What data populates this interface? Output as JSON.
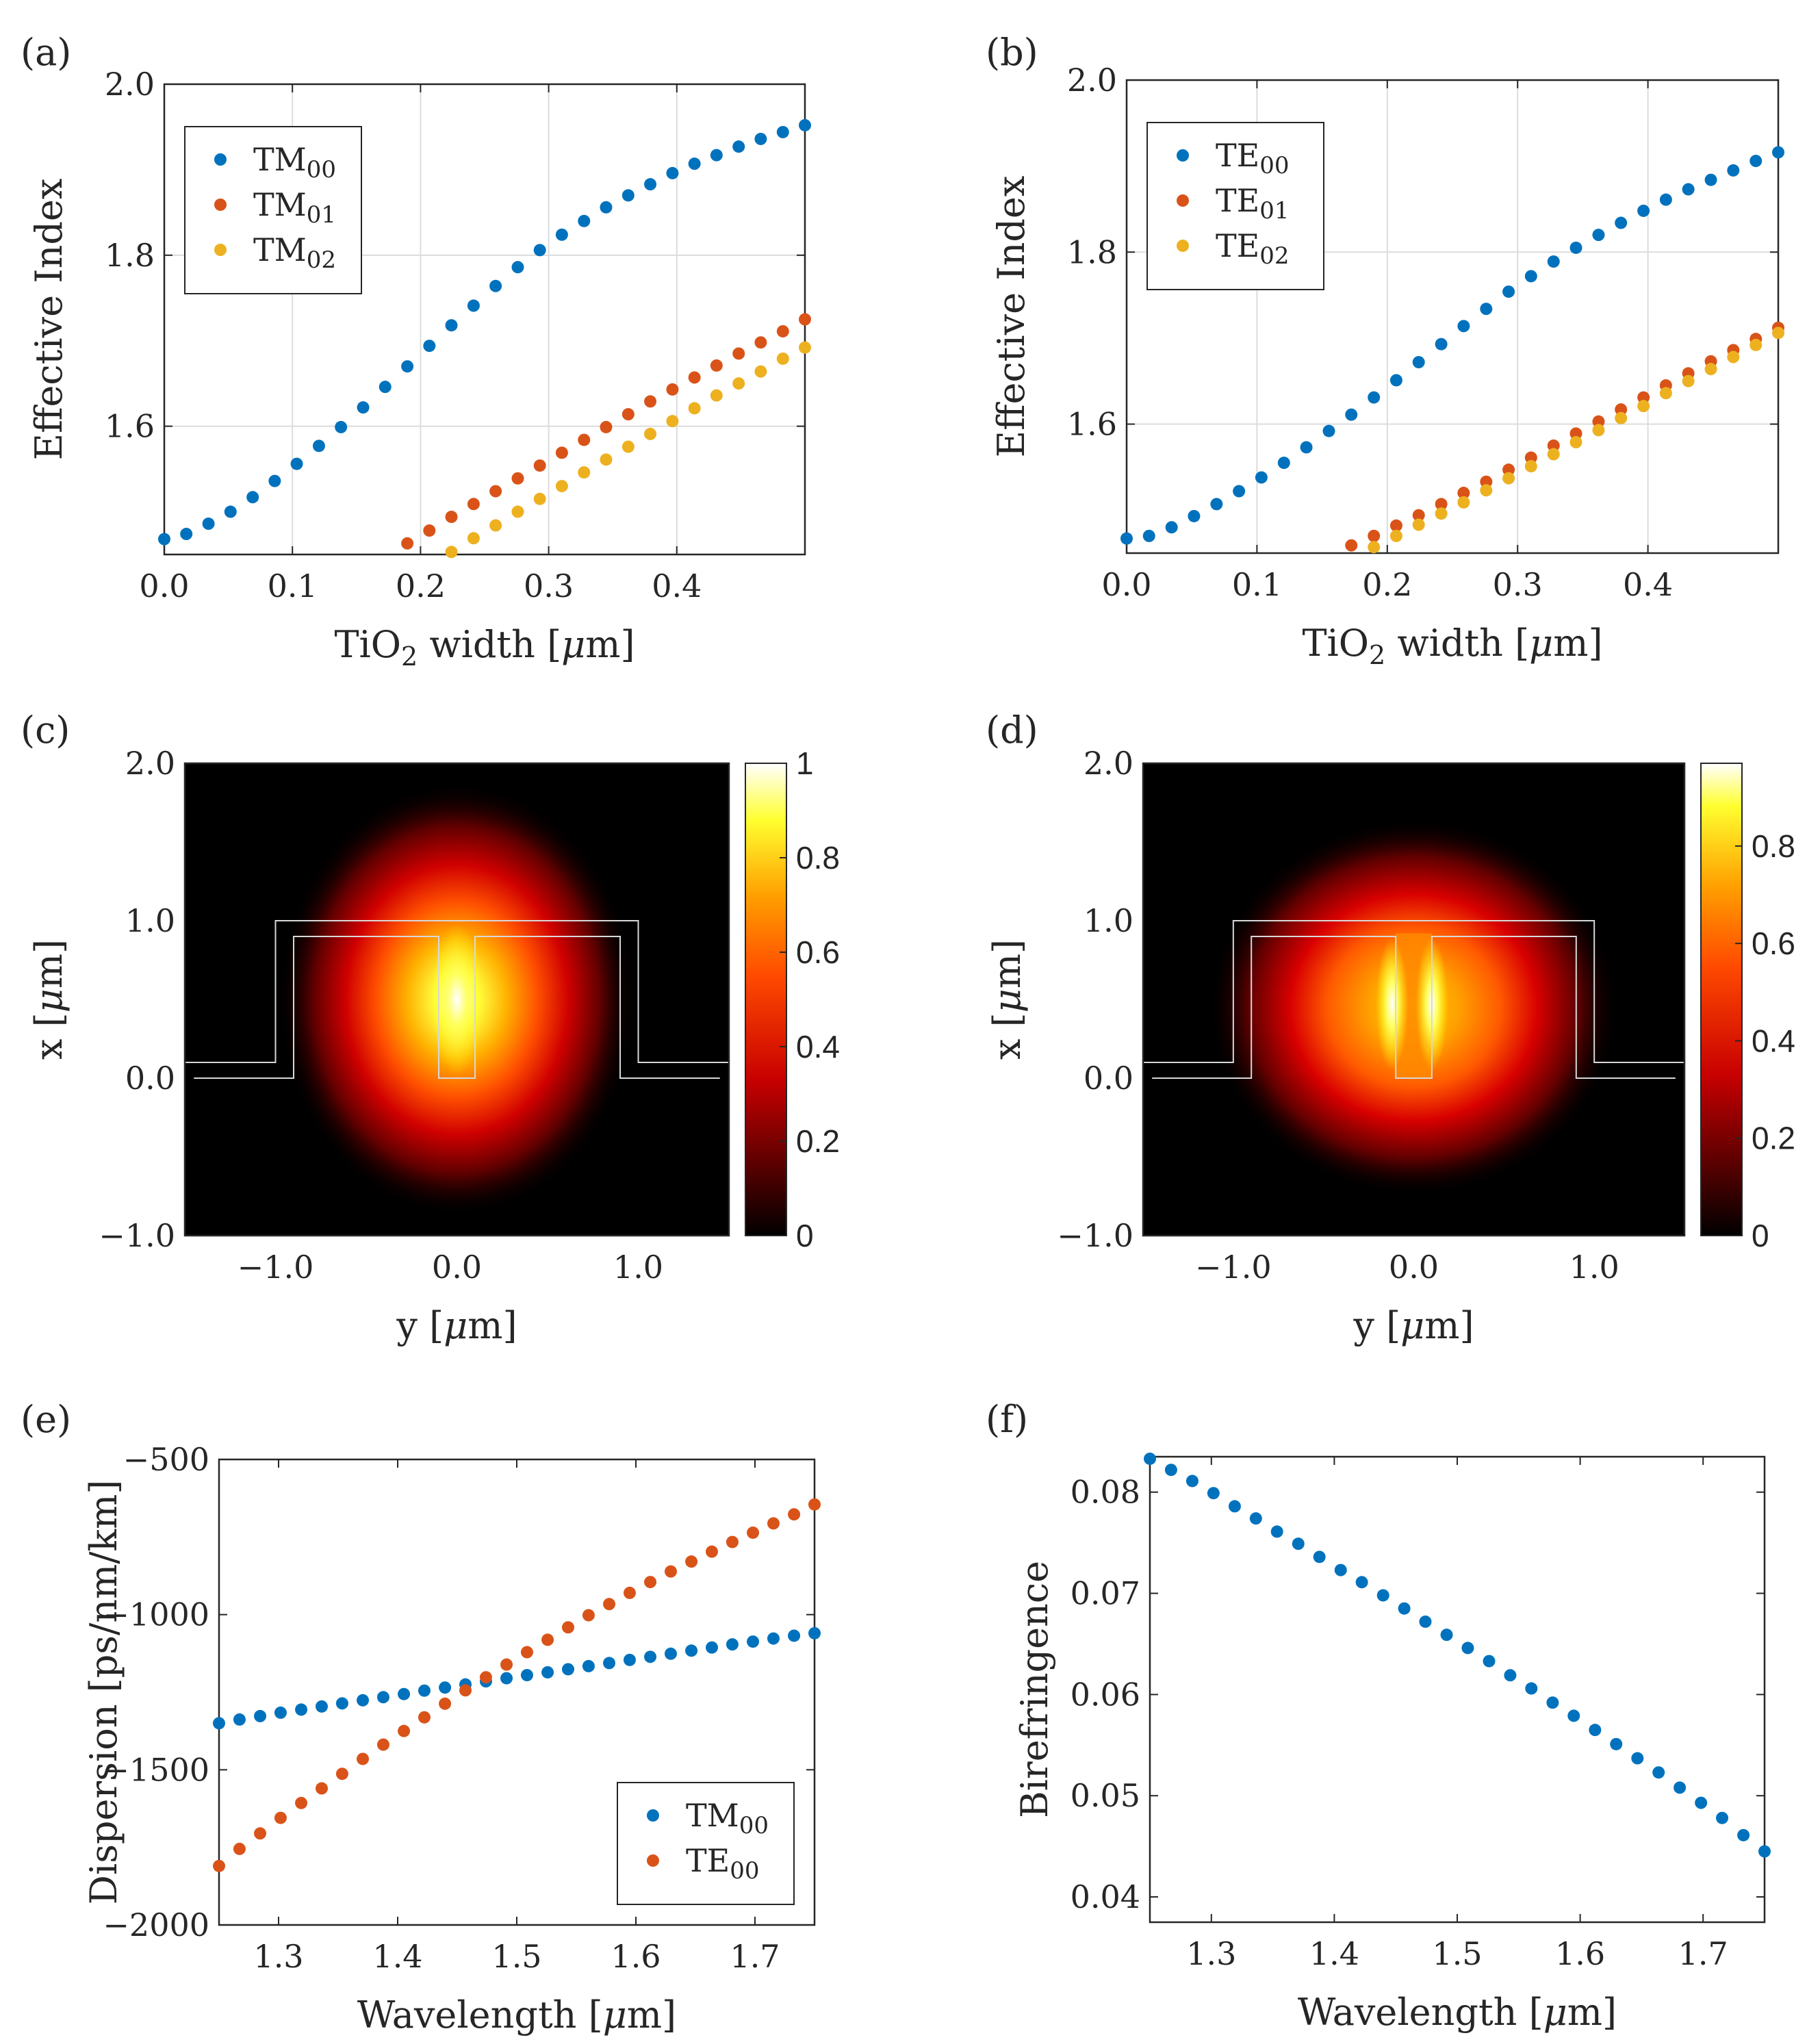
{
  "chart_data": [
    {
      "panel": "(a)",
      "type": "scatter",
      "xlabel": "TiO2 width [μm]",
      "ylabel": "Effective Index",
      "xlim": [
        0.0,
        0.5
      ],
      "ylim": [
        1.45,
        2.0
      ],
      "xticks": [
        "0.0",
        "0.1",
        "0.2",
        "0.3",
        "0.4"
      ],
      "yticks": [
        "1.6",
        "1.8",
        "2.0"
      ],
      "grid": true,
      "legend_position": "top-left",
      "series": [
        {
          "name": "TM",
          "sub": "00",
          "color": "#0072BD",
          "x": [
            0.0,
            0.0172,
            0.0345,
            0.0517,
            0.069,
            0.0862,
            0.1034,
            0.1207,
            0.1379,
            0.1552,
            0.1724,
            0.1897,
            0.2069,
            0.2241,
            0.2414,
            0.2586,
            0.2759,
            0.2931,
            0.3103,
            0.3276,
            0.3448,
            0.3621,
            0.3793,
            0.3966,
            0.4138,
            0.431,
            0.4483,
            0.4655,
            0.4828,
            0.5
          ],
          "y": [
            1.468,
            1.474,
            1.486,
            1.5,
            1.517,
            1.536,
            1.556,
            1.577,
            1.599,
            1.622,
            1.646,
            1.67,
            1.694,
            1.718,
            1.741,
            1.764,
            1.786,
            1.806,
            1.824,
            1.84,
            1.856,
            1.87,
            1.883,
            1.896,
            1.907,
            1.917,
            1.927,
            1.936,
            1.944,
            1.952
          ]
        },
        {
          "name": "TM",
          "sub": "01",
          "color": "#D95319",
          "x": [
            0.1897,
            0.2069,
            0.2241,
            0.2414,
            0.2586,
            0.2759,
            0.2931,
            0.3103,
            0.3276,
            0.3448,
            0.3621,
            0.3793,
            0.3966,
            0.4138,
            0.431,
            0.4483,
            0.4655,
            0.4828,
            0.5
          ],
          "y": [
            1.463,
            1.478,
            1.494,
            1.509,
            1.524,
            1.539,
            1.554,
            1.569,
            1.584,
            1.599,
            1.614,
            1.629,
            1.643,
            1.657,
            1.671,
            1.685,
            1.698,
            1.711,
            1.725
          ]
        },
        {
          "name": "TM",
          "sub": "02",
          "color": "#EDB120",
          "x": [
            0.2241,
            0.2414,
            0.2586,
            0.2759,
            0.2931,
            0.3103,
            0.3276,
            0.3448,
            0.3621,
            0.3793,
            0.3966,
            0.4138,
            0.431,
            0.4483,
            0.4655,
            0.4828,
            0.5
          ],
          "y": [
            1.453,
            1.469,
            1.484,
            1.5,
            1.515,
            1.53,
            1.546,
            1.561,
            1.576,
            1.591,
            1.606,
            1.621,
            1.636,
            1.65,
            1.664,
            1.679,
            1.692
          ]
        }
      ]
    },
    {
      "panel": "(b)",
      "type": "scatter",
      "xlabel": "TiO2 width [μm]",
      "ylabel": "Effective Index",
      "xlim": [
        0.0,
        0.5
      ],
      "ylim": [
        1.45,
        2.0
      ],
      "xticks": [
        "0.0",
        "0.1",
        "0.2",
        "0.3",
        "0.4"
      ],
      "yticks": [
        "1.6",
        "1.8",
        "2.0"
      ],
      "grid": true,
      "legend_position": "top-left",
      "series": [
        {
          "name": "TE",
          "sub": "00",
          "color": "#0072BD",
          "x": [
            0.0,
            0.0172,
            0.0345,
            0.0517,
            0.069,
            0.0862,
            0.1034,
            0.1207,
            0.1379,
            0.1552,
            0.1724,
            0.1897,
            0.2069,
            0.2241,
            0.2414,
            0.2586,
            0.2759,
            0.2931,
            0.3103,
            0.3276,
            0.3448,
            0.3621,
            0.3793,
            0.3966,
            0.4138,
            0.431,
            0.4483,
            0.4655,
            0.4828,
            0.5
          ],
          "y": [
            1.467,
            1.47,
            1.48,
            1.493,
            1.507,
            1.522,
            1.538,
            1.555,
            1.573,
            1.592,
            1.611,
            1.631,
            1.651,
            1.672,
            1.693,
            1.714,
            1.734,
            1.754,
            1.772,
            1.789,
            1.805,
            1.82,
            1.834,
            1.848,
            1.861,
            1.873,
            1.884,
            1.895,
            1.906,
            1.916
          ]
        },
        {
          "name": "TE",
          "sub": "01",
          "color": "#D95319",
          "x": [
            0.1724,
            0.1897,
            0.2069,
            0.2241,
            0.2414,
            0.2586,
            0.2759,
            0.2931,
            0.3103,
            0.3276,
            0.3448,
            0.3621,
            0.3793,
            0.3966,
            0.4138,
            0.431,
            0.4483,
            0.4655,
            0.4828,
            0.5
          ],
          "y": [
            1.459,
            1.47,
            1.482,
            1.494,
            1.507,
            1.52,
            1.533,
            1.547,
            1.561,
            1.575,
            1.589,
            1.603,
            1.617,
            1.631,
            1.645,
            1.659,
            1.673,
            1.686,
            1.699,
            1.712
          ]
        },
        {
          "name": "TE",
          "sub": "02",
          "color": "#EDB120",
          "x": [
            0.1897,
            0.2069,
            0.2241,
            0.2414,
            0.2586,
            0.2759,
            0.2931,
            0.3103,
            0.3276,
            0.3448,
            0.3621,
            0.3793,
            0.3966,
            0.4138,
            0.431,
            0.4483,
            0.4655,
            0.4828,
            0.5
          ],
          "y": [
            1.457,
            1.47,
            1.483,
            1.496,
            1.509,
            1.523,
            1.537,
            1.551,
            1.565,
            1.579,
            1.593,
            1.607,
            1.621,
            1.636,
            1.65,
            1.664,
            1.678,
            1.692,
            1.706
          ]
        }
      ]
    },
    {
      "panel": "(c)",
      "type": "heatmap",
      "xlabel": "y [μm]",
      "ylabel": "x [μm]",
      "xlim": [
        -1.5,
        1.5
      ],
      "ylim": [
        -1.0,
        2.0
      ],
      "xticks": [
        "−1.0",
        "0.0",
        "1.0"
      ],
      "yticks": [
        "−1.0",
        "0.0",
        "1.0",
        "2.0"
      ],
      "colorbar": {
        "min": 0,
        "max": 1,
        "ticks": [
          "0",
          "0.2",
          "0.4",
          "0.6",
          "0.8",
          "1"
        ]
      },
      "peak": {
        "y": 0.0,
        "x": 0.5,
        "value": 1.0
      },
      "mode": "single-lobe centered in the slot"
    },
    {
      "panel": "(d)",
      "type": "heatmap",
      "xlabel": "y [μm]",
      "ylabel": "x [μm]",
      "xlim": [
        -1.5,
        1.5
      ],
      "ylim": [
        -1.0,
        2.0
      ],
      "xticks": [
        "−1.0",
        "0.0",
        "1.0"
      ],
      "yticks": [
        "−1.0",
        "0.0",
        "1.0",
        "2.0"
      ],
      "colorbar": {
        "min": 0,
        "max": 0.97,
        "ticks": [
          "0",
          "0.2",
          "0.4",
          "0.6",
          "0.8"
        ]
      },
      "peak": {
        "y": 0.1,
        "x": 0.45,
        "value": 0.97
      },
      "mode": "two lobes at the slot walls"
    },
    {
      "panel": "(e)",
      "type": "scatter",
      "xlabel": "Wavelength [μm]",
      "ylabel": "Dispersion [ps/nm/km]",
      "xlim": [
        1.25,
        1.75
      ],
      "ylim": [
        -2000,
        -500
      ],
      "xticks": [
        "1.3",
        "1.4",
        "1.5",
        "1.6",
        "1.7"
      ],
      "yticks": [
        "−2000",
        "−1500",
        "−1000",
        "−500"
      ],
      "grid": false,
      "legend_position": "bottom-right",
      "series": [
        {
          "name": "TM",
          "sub": "00",
          "color": "#0072BD",
          "x": [
            1.25,
            1.2672,
            1.2845,
            1.3017,
            1.319,
            1.3362,
            1.3534,
            1.3707,
            1.3879,
            1.4052,
            1.4224,
            1.4397,
            1.4569,
            1.4741,
            1.4914,
            1.5086,
            1.5259,
            1.5431,
            1.5603,
            1.5776,
            1.5948,
            1.6121,
            1.6293,
            1.6466,
            1.6638,
            1.681,
            1.6983,
            1.7155,
            1.7328,
            1.75
          ],
          "y": [
            -1350,
            -1338,
            -1327,
            -1316,
            -1306,
            -1296,
            -1286,
            -1276,
            -1266,
            -1256,
            -1245,
            -1235,
            -1225,
            -1215,
            -1205,
            -1195,
            -1186,
            -1176,
            -1166,
            -1156,
            -1146,
            -1136,
            -1126,
            -1116,
            -1106,
            -1096,
            -1087,
            -1077,
            -1068,
            -1060
          ]
        },
        {
          "name": "TE",
          "sub": "00",
          "color": "#D95319",
          "x": [
            1.25,
            1.2672,
            1.2845,
            1.3017,
            1.319,
            1.3362,
            1.3534,
            1.3707,
            1.3879,
            1.4052,
            1.4224,
            1.4397,
            1.4569,
            1.4741,
            1.4914,
            1.5086,
            1.5259,
            1.5431,
            1.5603,
            1.5776,
            1.5948,
            1.6121,
            1.6293,
            1.6466,
            1.6638,
            1.681,
            1.6983,
            1.7155,
            1.7328,
            1.75
          ],
          "y": [
            -1810,
            -1755,
            -1705,
            -1655,
            -1607,
            -1560,
            -1513,
            -1465,
            -1419,
            -1375,
            -1331,
            -1287,
            -1244,
            -1202,
            -1161,
            -1121,
            -1081,
            -1041,
            -1002,
            -966,
            -930,
            -895,
            -861,
            -829,
            -797,
            -766,
            -736,
            -706,
            -677,
            -645
          ]
        }
      ]
    },
    {
      "panel": "(f)",
      "type": "scatter",
      "xlabel": "Wavelength [μm]",
      "ylabel": "Birefringence",
      "xlim": [
        1.25,
        1.75
      ],
      "ylim": [
        0.0375,
        0.0835
      ],
      "xticks": [
        "1.3",
        "1.4",
        "1.5",
        "1.6",
        "1.7"
      ],
      "yticks": [
        "0.04",
        "0.05",
        "0.06",
        "0.07",
        "0.08"
      ],
      "grid": false,
      "series": [
        {
          "name": "Birefringence",
          "color": "#0072BD",
          "x": [
            1.25,
            1.2672,
            1.2845,
            1.3017,
            1.319,
            1.3362,
            1.3534,
            1.3707,
            1.3879,
            1.4052,
            1.4224,
            1.4397,
            1.4569,
            1.4741,
            1.4914,
            1.5086,
            1.5259,
            1.5431,
            1.5603,
            1.5776,
            1.5948,
            1.6121,
            1.6293,
            1.6466,
            1.6638,
            1.681,
            1.6983,
            1.7155,
            1.7328,
            1.75
          ],
          "y": [
            0.0833,
            0.0822,
            0.0811,
            0.0799,
            0.0786,
            0.0774,
            0.0761,
            0.0749,
            0.0736,
            0.0723,
            0.0711,
            0.0698,
            0.0685,
            0.0672,
            0.0659,
            0.0646,
            0.0633,
            0.0619,
            0.0606,
            0.0592,
            0.0579,
            0.0565,
            0.0551,
            0.0537,
            0.0523,
            0.0508,
            0.0493,
            0.0478,
            0.0461,
            0.0445
          ]
        }
      ]
    }
  ]
}
